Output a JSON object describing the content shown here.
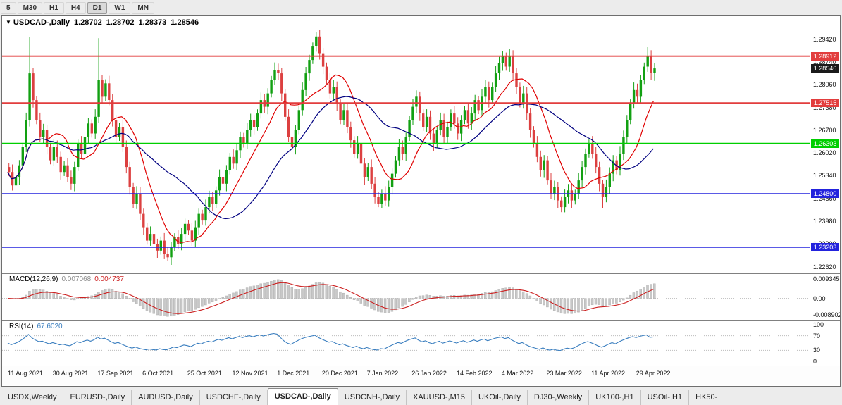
{
  "toolbar": {
    "timeframes": [
      "5",
      "M30",
      "H1",
      "H4",
      "D1",
      "W1",
      "MN"
    ],
    "active": "D1"
  },
  "chart": {
    "title_symbol": "USDCAD-,Daily",
    "ohlc": [
      "1.28702",
      "1.28702",
      "1.28373",
      "1.28546"
    ],
    "current_price": "1.28546",
    "levels": [
      {
        "price": 1.28912,
        "label": "1.28912",
        "color": "#e23d3d"
      },
      {
        "price": 1.27515,
        "label": "1.27515",
        "color": "#e23d3d"
      },
      {
        "price": 1.26303,
        "label": "1.26303",
        "color": "#00cf00"
      },
      {
        "price": 1.248,
        "label": "1.24800",
        "color": "#2323dd"
      },
      {
        "price": 1.23203,
        "label": "1.23203",
        "color": "#2323dd"
      }
    ],
    "price_ticks": [
      "1.29420",
      "1.28740",
      "1.28060",
      "1.27380",
      "1.26700",
      "1.26020",
      "1.25340",
      "1.24660",
      "1.23980",
      "1.23300",
      "1.22620"
    ],
    "date_ticks": [
      {
        "d": 0,
        "label": "11 Aug 2021"
      },
      {
        "d": 13,
        "label": "30 Aug 2021"
      },
      {
        "d": 26,
        "label": "17 Sep 2021"
      },
      {
        "d": 39,
        "label": "6 Oct 2021"
      },
      {
        "d": 52,
        "label": "25 Oct 2021"
      },
      {
        "d": 65,
        "label": "12 Nov 2021"
      },
      {
        "d": 78,
        "label": "1 Dec 2021"
      },
      {
        "d": 91,
        "label": "20 Dec 2021"
      },
      {
        "d": 104,
        "label": "7 Jan 2022"
      },
      {
        "d": 117,
        "label": "26 Jan 2022"
      },
      {
        "d": 130,
        "label": "14 Feb 2022"
      },
      {
        "d": 143,
        "label": "4 Mar 2022"
      },
      {
        "d": 156,
        "label": "23 Mar 2022"
      },
      {
        "d": 169,
        "label": "11 Apr 2022"
      },
      {
        "d": 182,
        "label": "29 Apr 2022"
      }
    ]
  },
  "chart_data": {
    "type": "candlestick",
    "symbol": "USDCAD",
    "timeframe": "Daily",
    "x_range": [
      "11 Aug 2021",
      "6 May 2022"
    ],
    "y_range": [
      1.225,
      1.2995
    ],
    "open_first": 1.256,
    "closes": [
      1.2545,
      1.2505,
      1.253,
      1.2565,
      1.262,
      1.27,
      1.284,
      1.276,
      1.27,
      1.265,
      1.267,
      1.262,
      1.258,
      1.262,
      1.259,
      1.2545,
      1.2565,
      1.253,
      1.251,
      1.256,
      1.263,
      1.26,
      1.265,
      1.269,
      1.266,
      1.271,
      1.282,
      1.277,
      1.281,
      1.276,
      1.27,
      1.265,
      1.268,
      1.262,
      1.256,
      1.25,
      1.245,
      1.248,
      1.242,
      1.238,
      1.234,
      1.236,
      1.233,
      1.231,
      1.234,
      1.23,
      1.229,
      1.232,
      1.235,
      1.233,
      1.236,
      1.239,
      1.237,
      1.234,
      1.238,
      1.242,
      1.24,
      1.244,
      1.247,
      1.245,
      1.249,
      1.253,
      1.251,
      1.255,
      1.259,
      1.257,
      1.261,
      1.265,
      1.263,
      1.267,
      1.27,
      1.268,
      1.272,
      1.276,
      1.274,
      1.278,
      1.282,
      1.285,
      1.284,
      1.278,
      1.271,
      1.265,
      1.262,
      1.267,
      1.273,
      1.279,
      1.284,
      1.288,
      1.292,
      1.295,
      1.29,
      1.286,
      1.282,
      1.278,
      1.28,
      1.275,
      1.27,
      1.273,
      1.268,
      1.264,
      1.26,
      1.263,
      1.257,
      1.253,
      1.256,
      1.251,
      1.247,
      1.245,
      1.248,
      1.246,
      1.25,
      1.254,
      1.258,
      1.262,
      1.26,
      1.265,
      1.27,
      1.274,
      1.277,
      1.272,
      1.268,
      1.271,
      1.266,
      1.263,
      1.267,
      1.27,
      1.265,
      1.268,
      1.272,
      1.269,
      1.266,
      1.27,
      1.273,
      1.269,
      1.272,
      1.276,
      1.273,
      1.277,
      1.28,
      1.276,
      1.28,
      1.284,
      1.287,
      1.289,
      1.286,
      1.289,
      1.284,
      1.28,
      1.275,
      1.278,
      1.272,
      1.267,
      1.263,
      1.259,
      1.255,
      1.258,
      1.252,
      1.248,
      1.25,
      1.246,
      1.244,
      1.247,
      1.249,
      1.246,
      1.248,
      1.252,
      1.256,
      1.26,
      1.263,
      1.26,
      1.256,
      1.251,
      1.247,
      1.25,
      1.254,
      1.258,
      1.255,
      1.26,
      1.265,
      1.27,
      1.275,
      1.279,
      1.277,
      1.282,
      1.286,
      1.289,
      1.284,
      1.28546
    ],
    "spike_highs": {
      "6": 1.2948,
      "26": 1.2945,
      "89": 1.2963,
      "185": 1.2918
    },
    "spike_lows": {
      "46": 1.2278,
      "107": 1.244,
      "160": 1.2425,
      "172": 1.2438
    },
    "ma_fast_period": 12,
    "ma_slow_period": 30
  },
  "macd": {
    "label": "MACD(12,26,9)",
    "value_main": "0.007068",
    "value_signal": "0.004737",
    "axis_top": "0.009345",
    "axis_zero": "0.00",
    "axis_bottom": "-0.008902",
    "params": [
      12,
      26,
      9
    ]
  },
  "rsi": {
    "label": "RSI(14)",
    "value": "67.6020",
    "axis": [
      "100",
      "70",
      "30",
      "0"
    ],
    "levels": [
      70,
      30
    ],
    "period": 14
  },
  "tabs": {
    "items": [
      "USDX,Weekly",
      "EURUSD-,Daily",
      "AUDUSD-,Daily",
      "USDCHF-,Daily",
      "USDCAD-,Daily",
      "USDCNH-,Daily",
      "XAUUSD-,M15",
      "UKOil-,Daily",
      "DJ30-,Weekly",
      "UK100-,H1",
      "USOil-,H1",
      "HK50-"
    ],
    "active_index": 4
  },
  "icons": {
    "chart_marker": "▼"
  },
  "colors": {
    "candle_up": "#12a012",
    "candle_down": "#dc4040",
    "ma_fast": "#e00000",
    "ma_slow": "#000080",
    "macd_bar": "#c8c8c8",
    "macd_bar_edge": "#b2b2b2",
    "macd_signal": "#cc2020",
    "rsi_line": "#3a7ebf",
    "badge_current": "#1a1a1a",
    "grid_dotted": "#bcbcbc"
  }
}
